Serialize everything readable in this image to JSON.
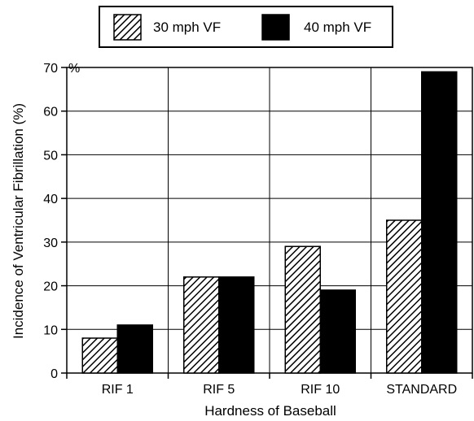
{
  "chart_data": {
    "type": "bar",
    "categories": [
      "RIF 1",
      "RIF 5",
      "RIF 10",
      "STANDARD"
    ],
    "series": [
      {
        "name": "30 mph VF",
        "values": [
          8,
          22,
          29,
          35
        ],
        "pattern": "hatched"
      },
      {
        "name": "40 mph VF",
        "values": [
          11,
          22,
          19,
          69
        ],
        "pattern": "solid"
      }
    ],
    "title": "",
    "xlabel": "Hardness of Baseball",
    "ylabel": "Incidence of Ventricular Fibrillation (%)",
    "ylim": [
      0,
      70
    ],
    "yticks": [
      {
        "value": 0,
        "label": "0"
      },
      {
        "value": 10,
        "label": "10"
      },
      {
        "value": 20,
        "label": "20"
      },
      {
        "value": 30,
        "label": "30"
      },
      {
        "value": 40,
        "label": "40"
      },
      {
        "value": 50,
        "label": "50"
      },
      {
        "value": 60,
        "label": "60"
      },
      {
        "value": 70,
        "label": "70"
      }
    ],
    "top_tick_suffix": "%",
    "grid": true,
    "legend_position": "top",
    "colors": {
      "bar_fill_solid": "#000000",
      "hatch": "#000000",
      "background": "#ffffff"
    }
  }
}
